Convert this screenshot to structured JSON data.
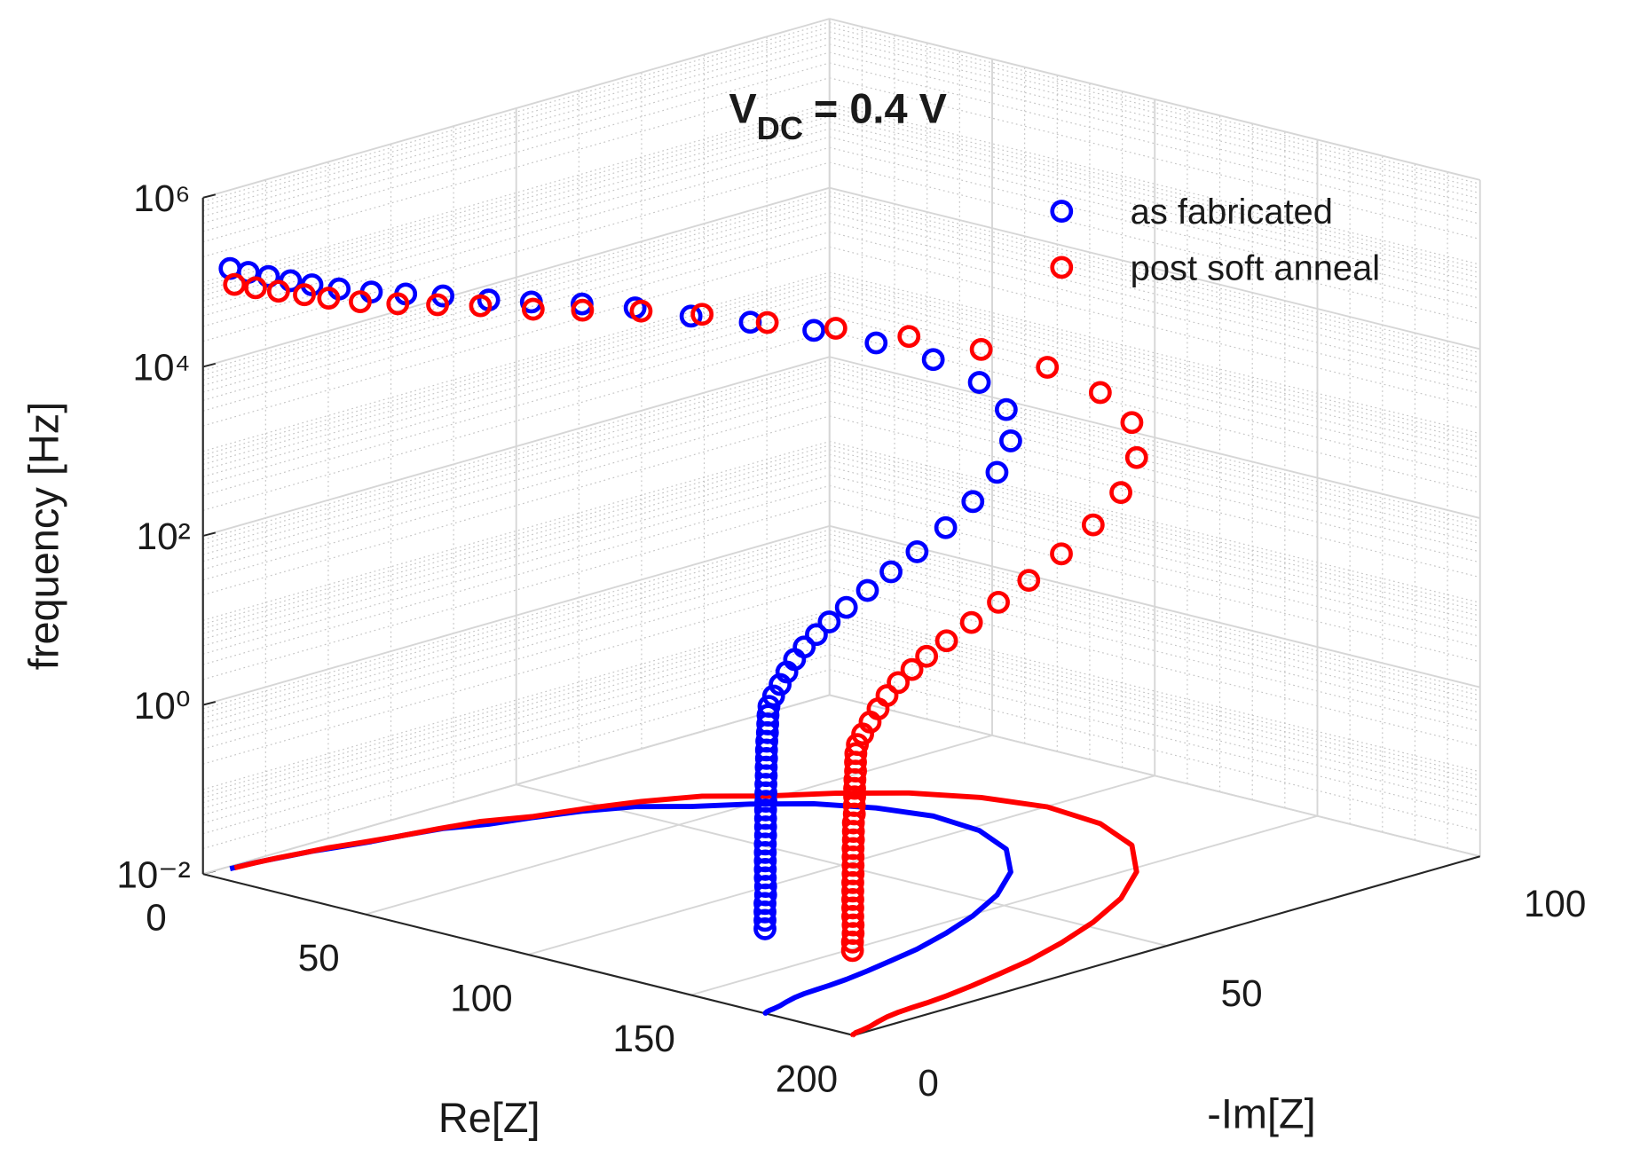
{
  "chart_data": {
    "type": "scatter3d",
    "title": {
      "text": "V",
      "subscript": "DC",
      "suffix": "= 0.4 V"
    },
    "xlabel": "Re[Z]",
    "ylabel": "-Im[Z]",
    "zlabel": "frequency [Hz]",
    "xlim": [
      0,
      200
    ],
    "ylim": [
      0,
      100
    ],
    "zlim": [
      0.01,
      1000000
    ],
    "zscale": "log",
    "xticks": [
      0,
      50,
      100,
      150,
      200
    ],
    "yticks": [
      0,
      50,
      100
    ],
    "zticks": [
      {
        "value": 0.01,
        "label": "10⁻²"
      },
      {
        "value": 1,
        "label": "10⁰"
      },
      {
        "value": 100,
        "label": "10²"
      },
      {
        "value": 10000,
        "label": "10⁴"
      },
      {
        "value": 1000000,
        "label": "10⁶"
      }
    ],
    "grid": true,
    "legend": "upper right",
    "series": [
      {
        "name": "as fabricated",
        "color": "#0000ff",
        "re": [
          1.4,
          1.8,
          2.6,
          3.8,
          4.8,
          6.8,
          9,
          10.9,
          13.3,
          18.3,
          21.6,
          26.2,
          32.3,
          41.4,
          49.8,
          60.1,
          72.7,
          86.8,
          102.7,
          117.9,
          131.8,
          142.8,
          150.8,
          156.5,
          160.8,
          163.2,
          165.2,
          166.6,
          167.3,
          167.6,
          167.9,
          168.6,
          169.7,
          170.9,
          171.6,
          171.9,
          172.0,
          172.1,
          172.2,
          172.2,
          172.3,
          172.3,
          172.4,
          172.4,
          172.5,
          172.5,
          172.5,
          172.6,
          172.6,
          172.6,
          172.6,
          172.7,
          172.7,
          172.7,
          172.7,
          172.7,
          172.8,
          172.8,
          172.8,
          172.8,
          172.8,
          172.8
        ],
        "im": [
          3.6,
          6.3,
          9.1,
          12.0,
          14.9,
          18.2,
          22.2,
          26.7,
          31.4,
          36.1,
          41.2,
          46.9,
          52.2,
          56.4,
          61.5,
          66.3,
          69.7,
          71.5,
          70.6,
          67.0,
          60.5,
          52.6,
          44.6,
          37.3,
          30.5,
          25.1,
          20.3,
          16.2,
          13.1,
          10.9,
          8.8,
          6.9,
          5.1,
          3.4,
          2.0,
          1.1,
          0.9,
          0.8,
          0.7,
          0.6,
          0.5,
          0.5,
          0.4,
          0.4,
          0.3,
          0.3,
          0.3,
          0.2,
          0.2,
          0.2,
          0.2,
          0.1,
          0.1,
          0.1,
          0.1,
          0.1,
          0.1,
          0.1,
          0,
          0,
          0,
          0
        ],
        "freq": [
          125893,
          100000,
          79433,
          63096,
          50119,
          39811,
          31623,
          25119,
          19953,
          15849,
          12589,
          10000,
          7943,
          6310,
          5012,
          3981,
          3162,
          2512,
          1995,
          1585,
          1259,
          1000,
          794.3,
          631,
          501.2,
          398.1,
          316.2,
          251.2,
          199.5,
          158.5,
          125.9,
          100,
          79.43,
          63.1,
          50.12,
          39.81,
          31.62,
          25.12,
          19.95,
          15.85,
          12.59,
          10,
          7.943,
          6.31,
          5.012,
          3.981,
          3.162,
          2.512,
          1.995,
          1.585,
          1.259,
          1,
          0.7943,
          0.631,
          0.5012,
          0.3981,
          0.3162,
          0.2512,
          0.1995,
          0.1585,
          0.1259,
          0.1
        ]
      },
      {
        "name": "post soft anneal",
        "color": "#ff0000",
        "re": [
          1.6,
          2.1,
          3.0,
          4.4,
          5.5,
          7.9,
          10.4,
          12.6,
          15.4,
          21.2,
          25.0,
          30.3,
          37.3,
          47.9,
          57.6,
          69.5,
          84.0,
          100.3,
          118.7,
          136.3,
          152.4,
          165.1,
          174.3,
          180.9,
          185.9,
          188.7,
          191.0,
          192.6,
          193.4,
          193.7,
          194.1,
          194.9,
          196.2,
          197.6,
          198.4,
          198.7,
          198.8,
          198.9,
          199.1,
          199.1,
          199.2,
          199.2,
          199.3,
          199.3,
          199.4,
          199.4,
          199.4,
          199.5,
          199.5,
          199.5,
          199.5,
          199.6,
          199.6,
          199.6,
          199.6,
          199.6,
          199.7,
          199.7,
          199.7,
          199.7
        ],
        "im": [
          4.2,
          7.3,
          10.5,
          13.9,
          17.2,
          21.0,
          25.7,
          30.9,
          36.3,
          41.7,
          47.6,
          54.2,
          60.3,
          65.2,
          71.1,
          76.6,
          80.6,
          82.7,
          81.6,
          77.5,
          69.9,
          60.8,
          51.6,
          43.1,
          35.3,
          29.0,
          23.5,
          18.7,
          15.1,
          12.6,
          10.2,
          8.0,
          5.9,
          3.9,
          2.3,
          1.3,
          1.0,
          0.9,
          0.8,
          0.7,
          0.6,
          0.6,
          0.5,
          0.5,
          0.3,
          0.3,
          0.3,
          0.2,
          0.2,
          0.2,
          0.2,
          0.1,
          0.1,
          0.1,
          0.1,
          0.1,
          0.1,
          0.1,
          0,
          0
        ],
        "freq": [
          79433,
          63096,
          50119,
          39811,
          31623,
          25119,
          19953,
          15849,
          12589,
          10000,
          7943,
          6310,
          5012,
          3981,
          3162,
          2512,
          1995,
          1585,
          1259,
          1000,
          794.3,
          631,
          501.2,
          398.1,
          316.2,
          251.2,
          199.5,
          158.5,
          125.9,
          100,
          79.43,
          63.1,
          50.12,
          39.81,
          31.62,
          25.12,
          19.95,
          15.85,
          12.59,
          10,
          7.943,
          6.31,
          5.012,
          3.981,
          3.162,
          2.512,
          1.995,
          1.585,
          1.259,
          1,
          0.7943,
          0.631,
          0.5012,
          0.3981,
          0.3162,
          0.2512,
          0.1995,
          0.1585,
          0.1259,
          0.1
        ]
      }
    ]
  }
}
